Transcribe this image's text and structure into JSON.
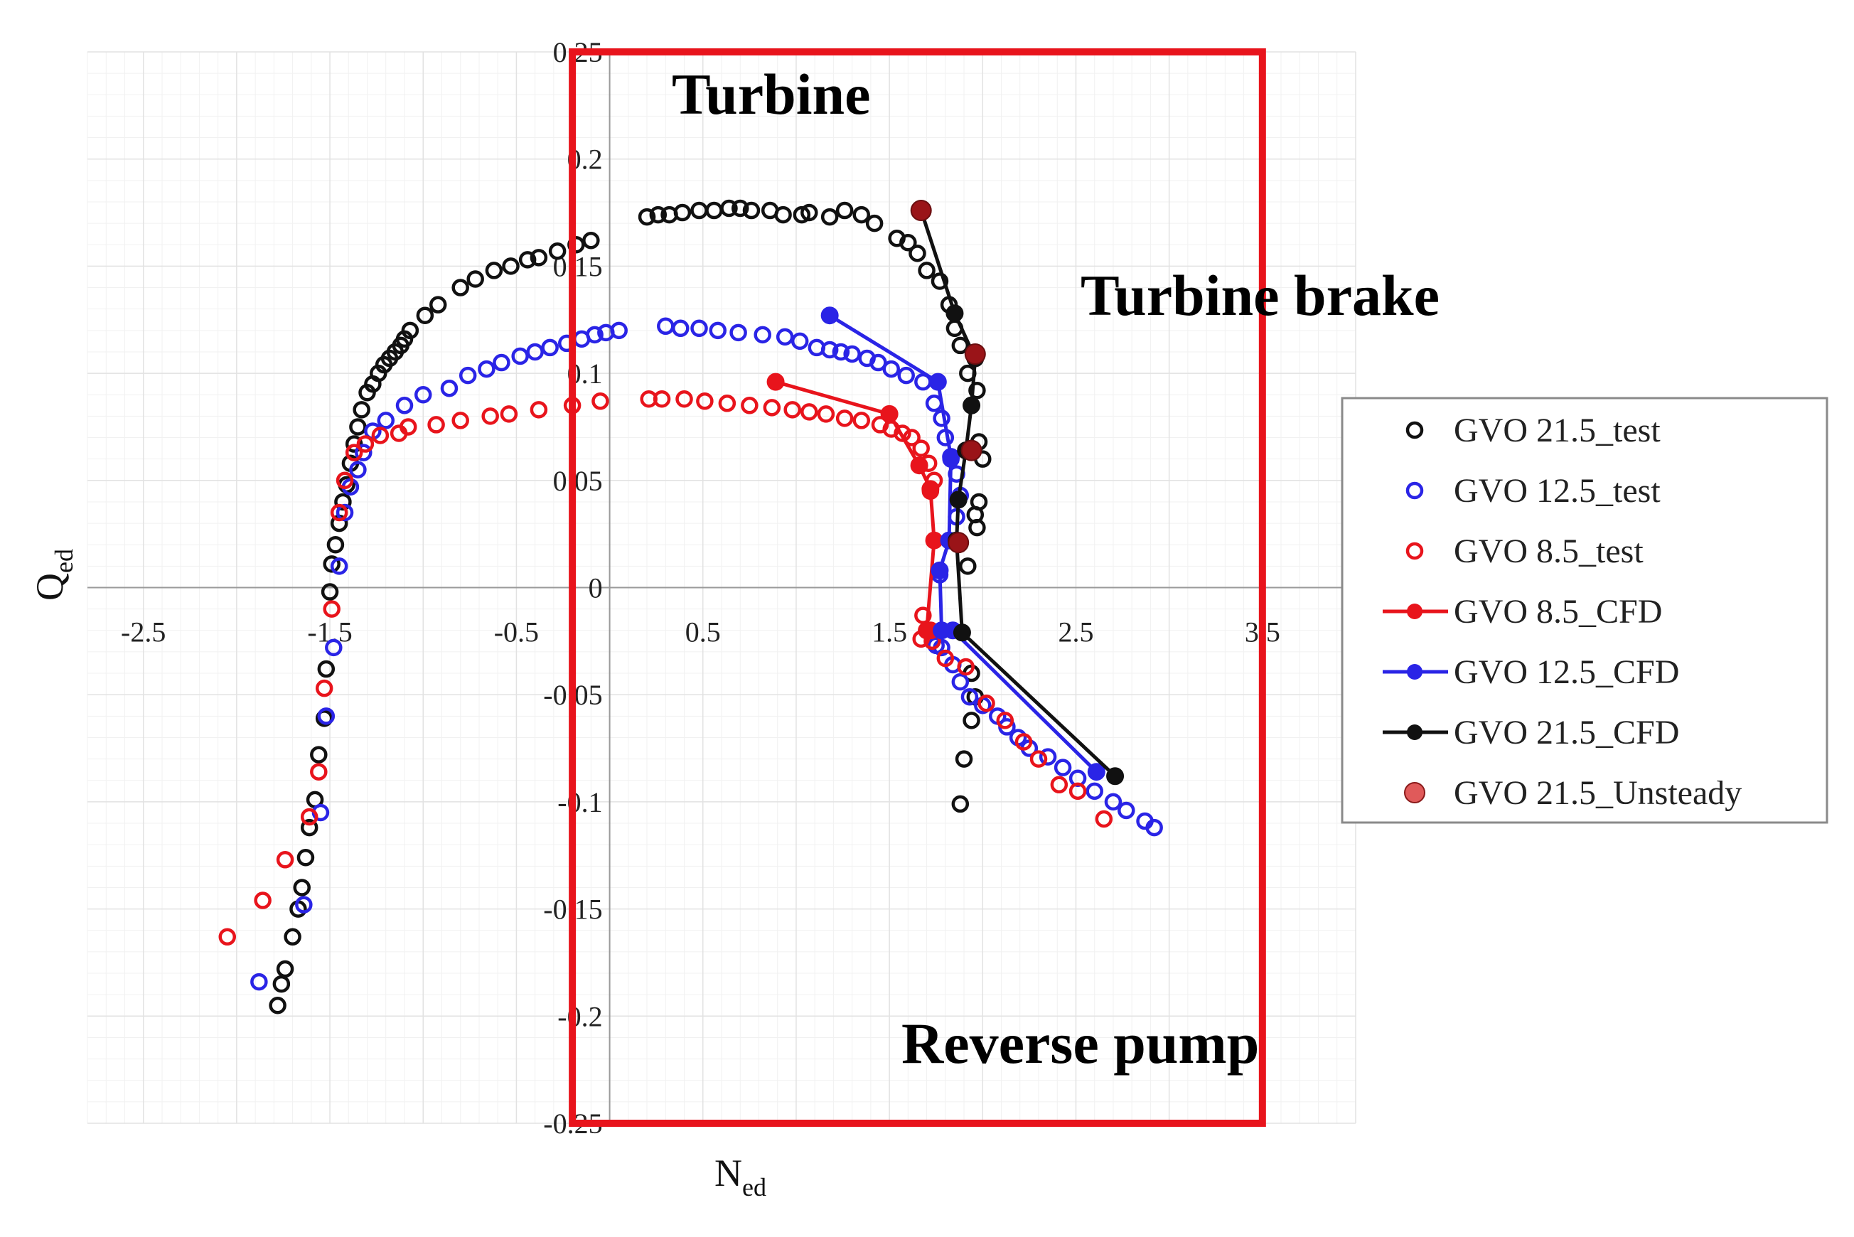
{
  "chart_data": {
    "type": "scatter",
    "title": "",
    "xlabel": "N",
    "xlabel_sub": "ed",
    "ylabel": "Q",
    "ylabel_sub": "ed",
    "xlim": [
      -2.8,
      4.0
    ],
    "ylim": [
      -0.25,
      0.25
    ],
    "xticks": [
      -2.5,
      -1.5,
      -0.5,
      0.5,
      1.5,
      2.5,
      3.5
    ],
    "xtick_labels": [
      "-2.5",
      "-1.5",
      "-0.5",
      "0.5",
      "1.5",
      "2.5",
      "3.5"
    ],
    "yticks": [
      0.25,
      0.2,
      0.15,
      0.1,
      0.05,
      0,
      -0.05,
      -0.1,
      -0.15,
      -0.2,
      -0.25
    ],
    "ytick_labels": [
      "0.25",
      "0.2",
      "0.15",
      "0.1",
      "0.05",
      "0",
      "-0.05",
      "-0.1",
      "-0.15",
      "-0.2",
      "-0.25"
    ],
    "grid": true,
    "legend_position": "right",
    "regions": [
      {
        "label": "Turbine"
      },
      {
        "label": "Turbine brake"
      },
      {
        "label": "Reverse pump"
      }
    ],
    "highlight_box": {
      "x_range": [
        -0.2,
        3.5
      ],
      "y_range": [
        -0.25,
        0.25
      ],
      "color": "#e8141c"
    },
    "series": [
      {
        "name": "GVO 21.5_test",
        "kind": "test",
        "color": "#111111",
        "x": [
          -1.78,
          -1.76,
          -1.74,
          -1.7,
          -1.67,
          -1.65,
          -1.63,
          -1.61,
          -1.58,
          -1.56,
          -1.53,
          -1.52,
          -1.5,
          -1.49,
          -1.47,
          -1.45,
          -1.43,
          -1.41,
          -1.39,
          -1.37,
          -1.35,
          -1.33,
          -1.3,
          -1.27,
          -1.24,
          -1.21,
          -1.18,
          -1.15,
          -1.12,
          -1.1,
          -1.07,
          -0.99,
          -0.92,
          -0.8,
          -0.72,
          -0.62,
          -0.53,
          -0.44,
          -0.38,
          -0.28,
          -0.18,
          -0.1,
          0.2,
          0.26,
          0.32,
          0.39,
          0.48,
          0.56,
          0.64,
          0.7,
          0.76,
          0.86,
          0.93,
          1.03,
          1.07,
          1.18,
          1.26,
          1.35,
          1.42,
          1.54,
          1.6,
          1.65,
          1.7,
          1.77,
          1.82,
          1.85,
          1.88,
          1.92,
          1.97,
          1.98,
          2.0,
          1.98,
          1.96,
          1.97,
          1.92,
          1.94,
          1.96,
          1.94,
          1.9,
          1.88
        ],
        "y": [
          -0.195,
          -0.185,
          -0.178,
          -0.163,
          -0.15,
          -0.14,
          -0.126,
          -0.112,
          -0.099,
          -0.078,
          -0.061,
          -0.038,
          -0.002,
          0.011,
          0.02,
          0.03,
          0.04,
          0.048,
          0.058,
          0.067,
          0.075,
          0.083,
          0.091,
          0.095,
          0.1,
          0.104,
          0.107,
          0.11,
          0.113,
          0.116,
          0.12,
          0.127,
          0.132,
          0.14,
          0.144,
          0.148,
          0.15,
          0.153,
          0.154,
          0.157,
          0.16,
          0.162,
          0.173,
          0.174,
          0.174,
          0.175,
          0.176,
          0.176,
          0.177,
          0.177,
          0.176,
          0.176,
          0.174,
          0.174,
          0.175,
          0.173,
          0.176,
          0.174,
          0.17,
          0.163,
          0.161,
          0.156,
          0.148,
          0.143,
          0.132,
          0.121,
          0.113,
          0.1,
          0.092,
          0.068,
          0.06,
          0.04,
          0.034,
          0.028,
          0.01,
          -0.04,
          -0.051,
          -0.062,
          -0.08,
          -0.101
        ]
      },
      {
        "name": "GVO 12.5_test",
        "kind": "test",
        "color": "#2a24e6",
        "x": [
          -1.88,
          -1.64,
          -1.55,
          -1.52,
          -1.48,
          -1.45,
          -1.42,
          -1.39,
          -1.35,
          -1.32,
          -1.27,
          -1.2,
          -1.1,
          -1.0,
          -0.86,
          -0.76,
          -0.66,
          -0.58,
          -0.48,
          -0.4,
          -0.32,
          -0.23,
          -0.15,
          -0.08,
          -0.02,
          0.05,
          0.3,
          0.38,
          0.48,
          0.58,
          0.69,
          0.82,
          0.94,
          1.02,
          1.11,
          1.18,
          1.24,
          1.3,
          1.38,
          1.44,
          1.51,
          1.59,
          1.68,
          1.74,
          1.78,
          1.8,
          1.83,
          1.86,
          1.88,
          1.86,
          1.82,
          1.77,
          1.75,
          1.78,
          1.84,
          1.88,
          1.93,
          2.0,
          2.08,
          2.13,
          2.19,
          2.25,
          2.35,
          2.43,
          2.51,
          2.6,
          2.7,
          2.77,
          2.87,
          2.92
        ],
        "y": [
          -0.184,
          -0.148,
          -0.105,
          -0.06,
          -0.028,
          0.01,
          0.035,
          0.047,
          0.055,
          0.063,
          0.073,
          0.078,
          0.085,
          0.09,
          0.093,
          0.099,
          0.102,
          0.105,
          0.108,
          0.11,
          0.112,
          0.114,
          0.116,
          0.118,
          0.119,
          0.12,
          0.122,
          0.121,
          0.121,
          0.12,
          0.119,
          0.118,
          0.117,
          0.115,
          0.112,
          0.111,
          0.11,
          0.109,
          0.107,
          0.105,
          0.102,
          0.099,
          0.096,
          0.086,
          0.079,
          0.07,
          0.06,
          0.053,
          0.043,
          0.033,
          0.022,
          0.006,
          -0.027,
          -0.028,
          -0.036,
          -0.044,
          -0.051,
          -0.055,
          -0.06,
          -0.065,
          -0.07,
          -0.075,
          -0.079,
          -0.084,
          -0.089,
          -0.095,
          -0.1,
          -0.104,
          -0.109,
          -0.112
        ]
      },
      {
        "name": "GVO 8.5_test",
        "kind": "test",
        "color": "#e8141c",
        "x": [
          -2.05,
          -1.86,
          -1.74,
          -1.61,
          -1.56,
          -1.53,
          -1.49,
          -1.45,
          -1.42,
          -1.37,
          -1.31,
          -1.23,
          -1.13,
          -1.08,
          -0.93,
          -0.8,
          -0.64,
          -0.54,
          -0.38,
          -0.2,
          -0.05,
          0.21,
          0.28,
          0.4,
          0.51,
          0.63,
          0.75,
          0.87,
          0.98,
          1.07,
          1.16,
          1.26,
          1.35,
          1.45,
          1.51,
          1.57,
          1.62,
          1.67,
          1.71,
          1.74,
          1.72,
          1.68,
          1.67,
          1.73,
          1.8,
          1.91,
          2.02,
          2.12,
          2.22,
          2.3,
          2.41,
          2.51,
          2.65
        ],
        "y": [
          -0.163,
          -0.146,
          -0.127,
          -0.107,
          -0.086,
          -0.047,
          -0.01,
          0.035,
          0.05,
          0.063,
          0.067,
          0.071,
          0.072,
          0.075,
          0.076,
          0.078,
          0.08,
          0.081,
          0.083,
          0.085,
          0.087,
          0.088,
          0.088,
          0.088,
          0.087,
          0.086,
          0.085,
          0.084,
          0.083,
          0.082,
          0.081,
          0.079,
          0.078,
          0.076,
          0.074,
          0.072,
          0.07,
          0.065,
          0.058,
          0.05,
          0.045,
          -0.013,
          -0.024,
          -0.025,
          -0.033,
          -0.037,
          -0.054,
          -0.062,
          -0.072,
          -0.08,
          -0.092,
          -0.095,
          -0.108
        ]
      },
      {
        "name": "GVO 8.5_CFD",
        "kind": "cfd",
        "color": "#e8141c",
        "x": [
          0.89,
          1.5,
          1.66,
          1.72,
          1.74,
          1.7,
          1.72
        ],
        "y": [
          0.096,
          0.081,
          0.057,
          0.046,
          0.022,
          -0.02,
          -0.02
        ]
      },
      {
        "name": "GVO 12.5_CFD",
        "kind": "cfd",
        "color": "#2a24e6",
        "x": [
          1.18,
          1.76,
          1.83,
          1.82,
          1.77,
          1.78,
          1.84,
          2.61
        ],
        "y": [
          0.127,
          0.096,
          0.061,
          0.022,
          0.008,
          -0.02,
          -0.02,
          -0.086
        ]
      },
      {
        "name": "GVO 21.5_CFD",
        "kind": "cfd",
        "color": "#111111",
        "x": [
          1.67,
          1.85,
          1.96,
          1.94,
          1.91,
          1.87,
          1.86,
          1.89,
          2.71
        ],
        "y": [
          0.176,
          0.128,
          0.107,
          0.085,
          0.064,
          0.041,
          0.022,
          -0.021,
          -0.088
        ]
      },
      {
        "name": "GVO 21.5_Unsteady",
        "kind": "unsteady",
        "color": "#9a1418",
        "x": [
          1.67,
          1.96,
          1.94,
          1.87
        ],
        "y": [
          0.176,
          0.109,
          0.064,
          0.021
        ]
      }
    ]
  }
}
